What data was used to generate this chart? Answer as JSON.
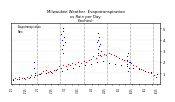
{
  "title": "Milwaukee Weather  Evapotranspiration\nvs Rain per Day\n(Inches)",
  "background_color": "#ffffff",
  "ylim": [
    0,
    0.55
  ],
  "ytick_values": [
    0.1,
    0.2,
    0.3,
    0.4,
    0.5
  ],
  "ytick_labels": [
    ".1",
    ".2",
    ".3",
    ".4",
    ".5"
  ],
  "red_dots": {
    "x": [
      2,
      5,
      8,
      11,
      15,
      18,
      21,
      24,
      27,
      30,
      34,
      37,
      40,
      43,
      46,
      49,
      52,
      55,
      58,
      61,
      64,
      67,
      70,
      73,
      76,
      79,
      82,
      86,
      90,
      94,
      97,
      100,
      104,
      107,
      110,
      114,
      117,
      121,
      124,
      127,
      131,
      134,
      138,
      141,
      145,
      148,
      151,
      155,
      158,
      161,
      164,
      168,
      171,
      174,
      177,
      180,
      183,
      187,
      191,
      194
    ],
    "y": [
      0.05,
      0.06,
      0.05,
      0.07,
      0.06,
      0.05,
      0.07,
      0.06,
      0.08,
      0.07,
      0.08,
      0.09,
      0.1,
      0.12,
      0.13,
      0.11,
      0.12,
      0.1,
      0.13,
      0.14,
      0.16,
      0.15,
      0.17,
      0.16,
      0.18,
      0.17,
      0.19,
      0.18,
      0.2,
      0.19,
      0.21,
      0.2,
      0.22,
      0.23,
      0.25,
      0.24,
      0.26,
      0.25,
      0.27,
      0.26,
      0.28,
      0.27,
      0.26,
      0.25,
      0.24,
      0.23,
      0.22,
      0.21,
      0.2,
      0.19,
      0.17,
      0.16,
      0.15,
      0.14,
      0.13,
      0.12,
      0.11,
      0.1,
      0.08,
      0.07
    ],
    "color": "#cc0000",
    "size": 3
  },
  "blue_dots": {
    "x": [
      67,
      68,
      69,
      70,
      71,
      72,
      68,
      69,
      70,
      115,
      116,
      117,
      118,
      119,
      120,
      116,
      117,
      118,
      119,
      155,
      156,
      157,
      158,
      159,
      156,
      157,
      30,
      31,
      32
    ],
    "y": [
      0.45,
      0.4,
      0.35,
      0.5,
      0.42,
      0.38,
      0.32,
      0.28,
      0.48,
      0.38,
      0.32,
      0.28,
      0.42,
      0.36,
      0.3,
      0.46,
      0.4,
      0.34,
      0.26,
      0.18,
      0.22,
      0.28,
      0.15,
      0.2,
      0.25,
      0.12,
      0.15,
      0.2,
      0.1
    ],
    "color": "#0000cc",
    "size": 3
  },
  "black_dots": {
    "x": [
      3,
      10,
      17,
      25,
      32,
      39,
      46,
      53,
      60,
      68,
      75,
      83,
      91,
      99,
      107,
      115,
      123,
      131,
      139,
      147,
      155,
      163,
      171,
      179,
      187,
      195
    ],
    "y": [
      0.04,
      0.05,
      0.06,
      0.07,
      0.08,
      0.09,
      0.1,
      0.11,
      0.13,
      0.12,
      0.14,
      0.15,
      0.16,
      0.17,
      0.18,
      0.2,
      0.21,
      0.19,
      0.18,
      0.17,
      0.16,
      0.15,
      0.14,
      0.12,
      0.11,
      0.09
    ],
    "color": "#000000",
    "size": 2
  },
  "vline_positions": [
    35,
    66,
    97,
    128,
    159,
    190
  ],
  "vline_color": "#aaaaaa",
  "vline_style": "--",
  "xlim": [
    0,
    200
  ],
  "xtick_positions": [
    1,
    10,
    19,
    28,
    36,
    45,
    54,
    63,
    72,
    81,
    90,
    99,
    108,
    117,
    126,
    135,
    144,
    153,
    162,
    171,
    180,
    189,
    196
  ],
  "xtick_labels": [
    "1/1",
    "",
    "1/15",
    "",
    "2/1",
    "",
    "2/15",
    "",
    "3/1",
    "",
    "3/15",
    "",
    "4/1",
    "",
    "4/15",
    "",
    "5/1",
    "",
    "5/15",
    "",
    "6/1",
    "",
    "6/15"
  ],
  "legend_label_et": "Evapotranspiration",
  "legend_label_rain": "Rain",
  "legend_color_et": "#cc0000",
  "legend_color_rain": "#0000cc"
}
